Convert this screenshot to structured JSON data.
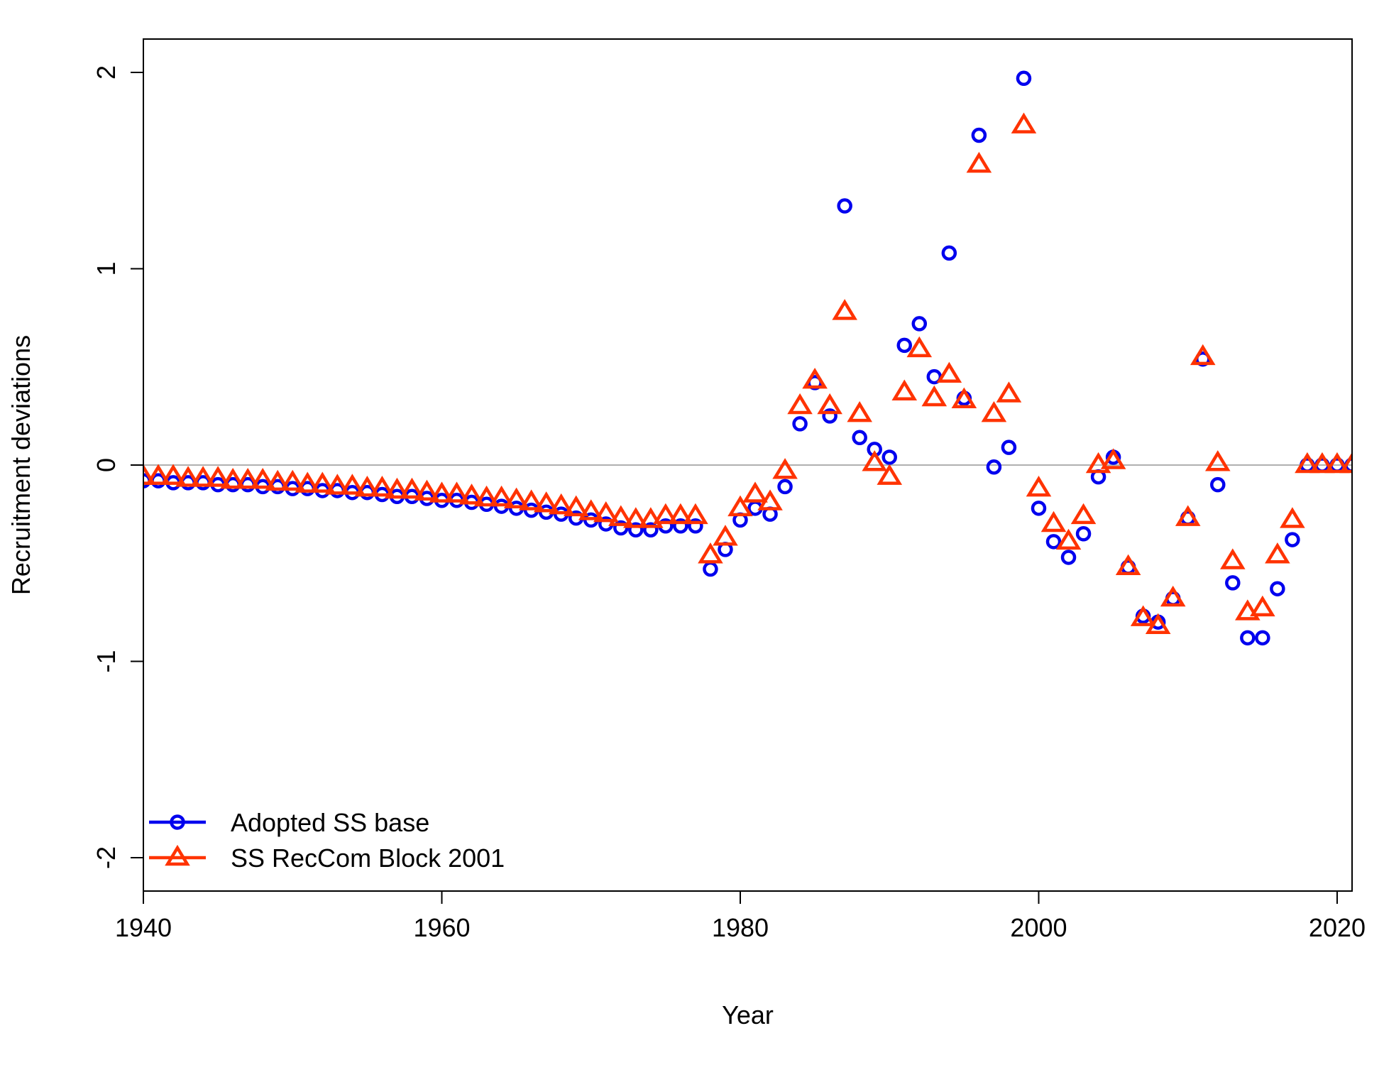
{
  "chart_data": {
    "type": "scatter",
    "title": "",
    "xlabel": "Year",
    "ylabel": "Recruitment deviations",
    "xlim": [
      1940,
      2021
    ],
    "ylim": [
      -2.17,
      2.17
    ],
    "x_ticks": [
      1940,
      1960,
      1980,
      2000,
      2020
    ],
    "y_ticks": [
      -2,
      -1,
      0,
      1,
      2
    ],
    "reference_line": {
      "y": 0,
      "color": "#b0b0b0"
    },
    "legend": {
      "position": "bottom-left"
    },
    "series": [
      {
        "name": "Adopted SS base",
        "color": "#0000ee",
        "marker": "circle",
        "x": [
          1940,
          1941,
          1942,
          1943,
          1944,
          1945,
          1946,
          1947,
          1948,
          1949,
          1950,
          1951,
          1952,
          1953,
          1954,
          1955,
          1956,
          1957,
          1958,
          1959,
          1960,
          1961,
          1962,
          1963,
          1964,
          1965,
          1966,
          1967,
          1968,
          1969,
          1970,
          1971,
          1972,
          1973,
          1974,
          1975,
          1976,
          1977,
          1978,
          1979,
          1980,
          1981,
          1982,
          1983,
          1984,
          1985,
          1986,
          1987,
          1988,
          1989,
          1990,
          1991,
          1992,
          1993,
          1994,
          1995,
          1996,
          1997,
          1998,
          1999,
          2000,
          2001,
          2002,
          2003,
          2004,
          2005,
          2006,
          2007,
          2008,
          2009,
          2010,
          2011,
          2012,
          2013,
          2014,
          2015,
          2016,
          2017,
          2018,
          2019,
          2020,
          2021
        ],
        "y": [
          -0.08,
          -0.08,
          -0.09,
          -0.09,
          -0.09,
          -0.1,
          -0.1,
          -0.1,
          -0.11,
          -0.11,
          -0.12,
          -0.12,
          -0.13,
          -0.13,
          -0.14,
          -0.14,
          -0.15,
          -0.16,
          -0.16,
          -0.17,
          -0.18,
          -0.18,
          -0.19,
          -0.2,
          -0.21,
          -0.22,
          -0.23,
          -0.24,
          -0.25,
          -0.27,
          -0.28,
          -0.3,
          -0.32,
          -0.33,
          -0.33,
          -0.31,
          -0.31,
          -0.31,
          -0.53,
          -0.43,
          -0.28,
          -0.22,
          -0.25,
          -0.11,
          0.21,
          0.42,
          0.25,
          1.32,
          0.14,
          0.08,
          0.04,
          0.61,
          0.72,
          0.45,
          1.08,
          0.34,
          1.68,
          -0.01,
          0.09,
          1.97,
          -0.22,
          -0.39,
          -0.47,
          -0.35,
          -0.06,
          0.04,
          -0.52,
          -0.77,
          -0.8,
          -0.68,
          -0.27,
          0.54,
          -0.1,
          -0.6,
          -0.88,
          -0.88,
          -0.63,
          -0.38,
          0.0,
          0.0,
          0.0,
          0.0
        ]
      },
      {
        "name": "SS RecCom Block 2001",
        "color": "#ff3300",
        "marker": "triangle",
        "x": [
          1940,
          1941,
          1942,
          1943,
          1944,
          1945,
          1946,
          1947,
          1948,
          1949,
          1950,
          1951,
          1952,
          1953,
          1954,
          1955,
          1956,
          1957,
          1958,
          1959,
          1960,
          1961,
          1962,
          1963,
          1964,
          1965,
          1966,
          1967,
          1968,
          1969,
          1970,
          1971,
          1972,
          1973,
          1974,
          1975,
          1976,
          1977,
          1978,
          1979,
          1980,
          1981,
          1982,
          1983,
          1984,
          1985,
          1986,
          1987,
          1988,
          1989,
          1990,
          1991,
          1992,
          1993,
          1994,
          1995,
          1996,
          1997,
          1998,
          1999,
          2000,
          2001,
          2002,
          2003,
          2004,
          2005,
          2006,
          2007,
          2008,
          2009,
          2010,
          2011,
          2012,
          2013,
          2014,
          2015,
          2016,
          2017,
          2018,
          2019,
          2020,
          2021
        ],
        "y": [
          -0.06,
          -0.06,
          -0.06,
          -0.07,
          -0.07,
          -0.07,
          -0.08,
          -0.08,
          -0.08,
          -0.09,
          -0.09,
          -0.1,
          -0.1,
          -0.11,
          -0.11,
          -0.12,
          -0.12,
          -0.13,
          -0.13,
          -0.14,
          -0.15,
          -0.15,
          -0.16,
          -0.17,
          -0.17,
          -0.18,
          -0.19,
          -0.2,
          -0.21,
          -0.22,
          -0.24,
          -0.25,
          -0.27,
          -0.28,
          -0.28,
          -0.26,
          -0.26,
          -0.26,
          -0.46,
          -0.37,
          -0.22,
          -0.15,
          -0.19,
          -0.03,
          0.3,
          0.43,
          0.3,
          0.78,
          0.26,
          0.01,
          -0.06,
          0.37,
          0.59,
          0.34,
          0.46,
          0.33,
          1.53,
          0.26,
          0.36,
          1.73,
          -0.12,
          -0.3,
          -0.39,
          -0.26,
          0.0,
          0.02,
          -0.52,
          -0.78,
          -0.82,
          -0.68,
          -0.27,
          0.55,
          0.01,
          -0.49,
          -0.75,
          -0.73,
          -0.46,
          -0.28,
          0.0,
          0.0,
          0.0,
          0.0
        ]
      }
    ]
  }
}
